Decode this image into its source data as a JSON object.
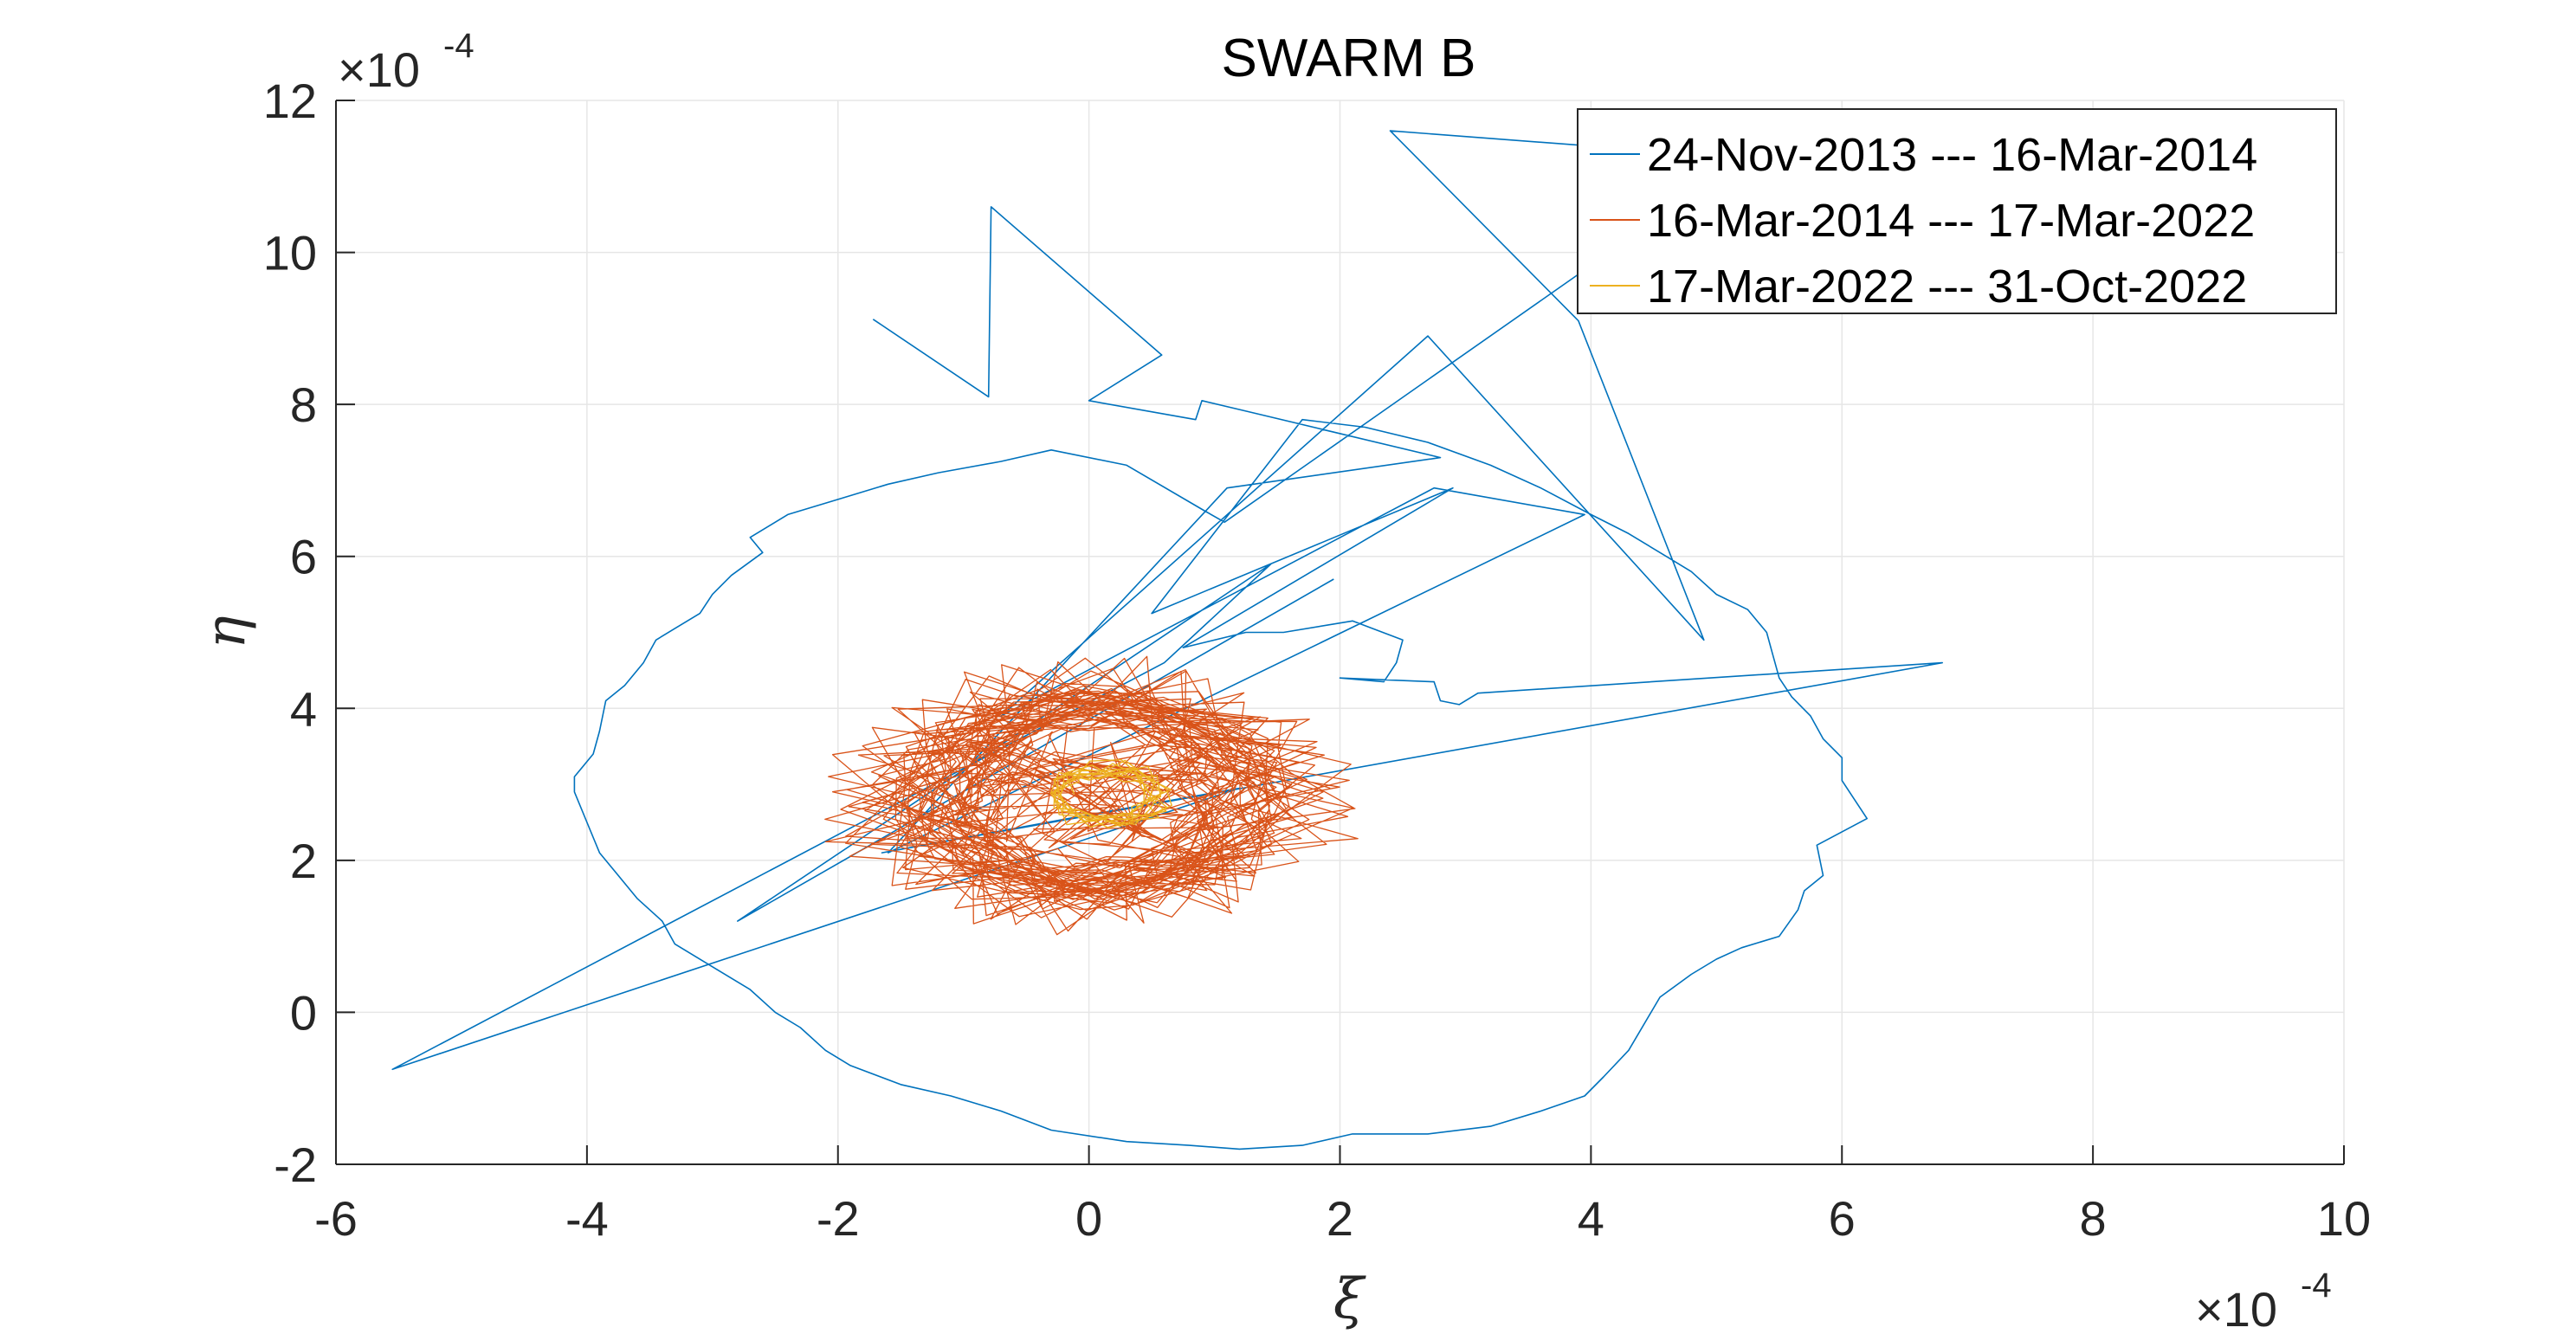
{
  "chart_data": {
    "type": "line",
    "title": "SWARM B",
    "xlabel": "ξ",
    "ylabel": "η",
    "x_exponent_label": "×10",
    "x_exponent_power": "-4",
    "y_exponent_label": "×10",
    "y_exponent_power": "-4",
    "xlim": [
      -6,
      10
    ],
    "ylim": [
      -2,
      12
    ],
    "xticks": [
      -6,
      -4,
      -2,
      0,
      2,
      4,
      6,
      8,
      10
    ],
    "yticks": [
      -2,
      0,
      2,
      4,
      6,
      8,
      10,
      12
    ],
    "xtick_labels": [
      "-6",
      "-4",
      "-2",
      "0",
      "2",
      "4",
      "6",
      "8",
      "10"
    ],
    "ytick_labels": [
      "-2",
      "0",
      "2",
      "4",
      "6",
      "8",
      "10",
      "12"
    ],
    "grid": true,
    "legend_position": "top-right",
    "series": [
      {
        "name": "24-Nov-2013 --- 16-Mar-2014",
        "color": "#0072BD",
        "points": [
          [
            -1.72,
            9.12
          ],
          [
            -0.8,
            8.1
          ],
          [
            -0.78,
            10.6
          ],
          [
            0.58,
            8.65
          ],
          [
            0.0,
            8.05
          ],
          [
            0.85,
            7.8
          ],
          [
            0.9,
            8.05
          ],
          [
            1.28,
            7.9
          ],
          [
            2.8,
            7.3
          ],
          [
            1.1,
            6.9
          ],
          [
            -1.6,
            2.1
          ],
          [
            3.95,
            6.55
          ],
          [
            2.75,
            6.9
          ],
          [
            -0.7,
            3.9
          ],
          [
            2.7,
            8.9
          ],
          [
            4.9,
            4.9
          ],
          [
            3.9,
            9.1
          ],
          [
            2.4,
            11.6
          ],
          [
            4.0,
            11.4
          ],
          [
            5.1,
            11.1
          ],
          [
            1.08,
            6.45
          ],
          [
            0.92,
            6.6
          ],
          [
            0.3,
            7.2
          ],
          [
            -0.3,
            7.4
          ],
          [
            -0.7,
            7.25
          ],
          [
            -1.2,
            7.1
          ],
          [
            -1.6,
            6.95
          ],
          [
            -2.0,
            6.75
          ],
          [
            -2.4,
            6.55
          ],
          [
            -2.7,
            6.25
          ],
          [
            -2.6,
            6.05
          ],
          [
            -2.85,
            5.75
          ],
          [
            -3.0,
            5.5
          ],
          [
            -3.1,
            5.25
          ],
          [
            -3.3,
            5.05
          ],
          [
            -3.45,
            4.9
          ],
          [
            -3.55,
            4.6
          ],
          [
            -3.7,
            4.3
          ],
          [
            -3.85,
            4.1
          ],
          [
            -3.9,
            3.7
          ],
          [
            -3.95,
            3.4
          ],
          [
            -4.1,
            3.1
          ],
          [
            -4.1,
            2.9
          ],
          [
            -4.0,
            2.5
          ],
          [
            -3.9,
            2.1
          ],
          [
            -3.75,
            1.8
          ],
          [
            -3.6,
            1.5
          ],
          [
            -3.4,
            1.2
          ],
          [
            -3.3,
            0.9
          ],
          [
            -3.0,
            0.6
          ],
          [
            -2.7,
            0.3
          ],
          [
            -2.5,
            0.0
          ],
          [
            -2.3,
            -0.2
          ],
          [
            -2.1,
            -0.5
          ],
          [
            -1.9,
            -0.7
          ],
          [
            -1.5,
            -0.95
          ],
          [
            -1.1,
            -1.1
          ],
          [
            -0.7,
            -1.3
          ],
          [
            -0.3,
            -1.55
          ],
          [
            0.3,
            -1.7
          ],
          [
            0.8,
            -1.75
          ],
          [
            1.2,
            -1.8
          ],
          [
            1.7,
            -1.75
          ],
          [
            2.1,
            -1.6
          ],
          [
            2.7,
            -1.6
          ],
          [
            3.2,
            -1.5
          ],
          [
            3.6,
            -1.3
          ],
          [
            3.95,
            -1.1
          ],
          [
            4.1,
            -0.85
          ],
          [
            4.3,
            -0.5
          ],
          [
            4.55,
            0.2
          ],
          [
            4.8,
            0.5
          ],
          [
            5.0,
            0.7
          ],
          [
            5.2,
            0.85
          ],
          [
            5.5,
            1.0
          ],
          [
            5.65,
            1.35
          ],
          [
            5.7,
            1.6
          ],
          [
            5.85,
            1.8
          ],
          [
            5.8,
            2.2
          ],
          [
            6.2,
            2.55
          ],
          [
            6.1,
            2.8
          ],
          [
            6.0,
            3.05
          ],
          [
            6.0,
            3.35
          ],
          [
            5.85,
            3.6
          ],
          [
            5.75,
            3.9
          ],
          [
            5.6,
            4.15
          ],
          [
            5.5,
            4.4
          ],
          [
            5.45,
            4.7
          ],
          [
            5.4,
            5.0
          ],
          [
            5.25,
            5.3
          ],
          [
            5.0,
            5.5
          ],
          [
            4.8,
            5.8
          ],
          [
            4.6,
            6.0
          ],
          [
            4.3,
            6.3
          ],
          [
            4.0,
            6.55
          ],
          [
            3.6,
            6.9
          ],
          [
            3.2,
            7.2
          ],
          [
            2.7,
            7.5
          ],
          [
            2.2,
            7.7
          ],
          [
            1.7,
            7.8
          ],
          [
            0.5,
            5.25
          ],
          [
            2.9,
            6.9
          ],
          [
            0.75,
            4.8
          ],
          [
            1.25,
            5.0
          ],
          [
            1.55,
            5.0
          ],
          [
            2.1,
            5.15
          ],
          [
            2.5,
            4.9
          ],
          [
            2.45,
            4.6
          ],
          [
            2.35,
            4.35
          ],
          [
            2.0,
            4.4
          ],
          [
            2.75,
            4.35
          ],
          [
            2.8,
            4.1
          ],
          [
            2.95,
            4.05
          ],
          [
            3.1,
            4.2
          ],
          [
            6.8,
            4.6
          ],
          [
            -1.65,
            2.1
          ],
          [
            0.0,
            2.6
          ],
          [
            1.2,
            2.95
          ],
          [
            -5.55,
            -0.75
          ],
          [
            0.6,
            4.6
          ],
          [
            1.45,
            5.9
          ],
          [
            -2.8,
            1.2
          ],
          [
            1.95,
            5.7
          ]
        ]
      },
      {
        "name": "16-Mar-2014 --- 17-Mar-2022",
        "color": "#D95319",
        "points": []
      },
      {
        "name": "17-Mar-2022 --- 31-Oct-2022",
        "color": "#EDB120",
        "points": []
      }
    ]
  }
}
